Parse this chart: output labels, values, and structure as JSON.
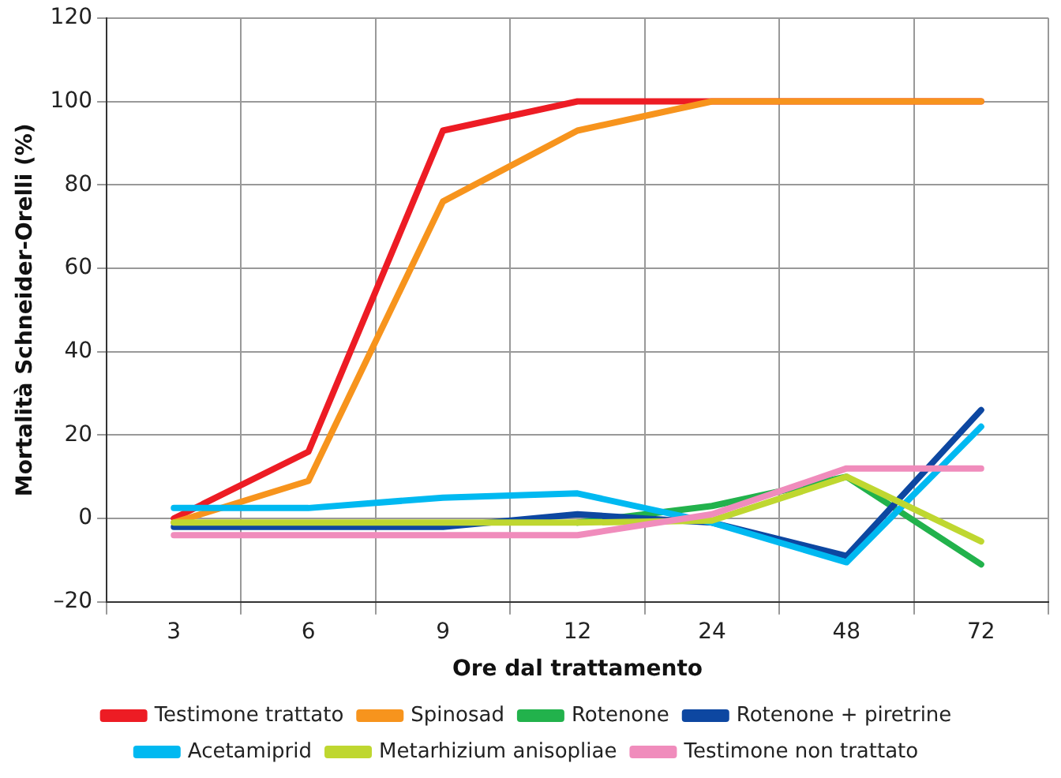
{
  "chart_data": {
    "type": "line",
    "xlabel": "Ore dal trattamento",
    "ylabel": "Mortalità Schneider-Orelli (%)",
    "categories": [
      "3",
      "6",
      "9",
      "12",
      "24",
      "48",
      "72"
    ],
    "series": [
      {
        "name": "Testimone trattato",
        "color": "#ed1c24",
        "values": [
          0,
          16,
          93,
          100,
          100,
          100,
          100
        ]
      },
      {
        "name": "Spinosad",
        "color": "#f7941d",
        "values": [
          -1,
          9,
          76,
          93,
          100,
          100,
          100
        ]
      },
      {
        "name": "Rotenone",
        "color": "#22b24c",
        "values": [
          null,
          null,
          null,
          -1,
          3,
          10,
          -11
        ]
      },
      {
        "name": "Rotenone + piretrine",
        "color": "#0d47a1",
        "values": [
          -2,
          -2,
          -2,
          1,
          -1,
          -9,
          26
        ]
      },
      {
        "name": "Acetamiprid",
        "color": "#00b9f1",
        "values": [
          2.5,
          2.5,
          5,
          6,
          -1,
          -10.5,
          22
        ]
      },
      {
        "name": "Metarhizium anisopliae",
        "color": "#bfd730",
        "values": [
          -1,
          -1,
          -1,
          -1,
          -0.5,
          10,
          -5.5
        ]
      },
      {
        "name": "Testimone non trattato",
        "color": "#f08cbc",
        "values": [
          -4,
          -4,
          -4,
          -4,
          1,
          12,
          12
        ]
      }
    ],
    "ylim": [
      -20,
      120
    ],
    "yticks": [
      {
        "value": -20,
        "label": "–20"
      },
      0,
      20,
      40,
      60,
      80,
      100,
      120
    ],
    "grid": true,
    "legend": "bottom",
    "marker": "none",
    "line_style": "solid"
  }
}
